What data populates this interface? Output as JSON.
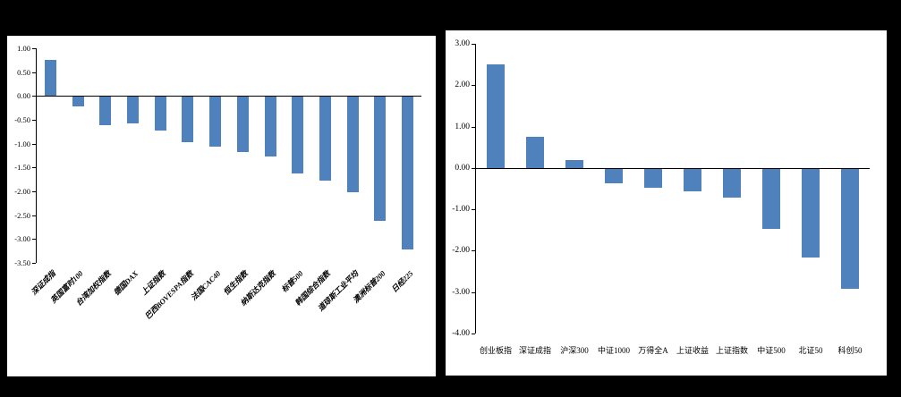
{
  "page": {
    "background_color": "#000000",
    "panel_background_color": "#FFFFFF"
  },
  "chart_data": [
    {
      "type": "bar",
      "title": "",
      "xlabel": "",
      "ylabel": "",
      "grid": false,
      "legend": null,
      "categories": [
        "深证成指",
        "英国富时100",
        "台湾加权指数",
        "德国DAX",
        "上证指数",
        "巴西BOVESPA指数",
        "法国CAC40",
        "恒生指数",
        "纳斯达克指数",
        "标普500",
        "韩国综合指数",
        "道琼斯工业平均",
        "澳洲标普200",
        "日经225"
      ],
      "values": [
        0.75,
        -0.2,
        -0.6,
        -0.55,
        -0.7,
        -0.95,
        -1.05,
        -1.15,
        -1.25,
        -1.6,
        -1.75,
        -2.0,
        -2.6,
        -3.2
      ],
      "ylim": [
        -3.5,
        1.0
      ],
      "yticks": [
        "1.00",
        "0.50",
        "0.00",
        "-0.50",
        "-1.00",
        "-1.50",
        "-2.00",
        "-2.50",
        "-3.00",
        "-3.50"
      ],
      "bar_color": "#4F81BD",
      "axis_color": "#000000"
    },
    {
      "type": "bar",
      "title": "",
      "xlabel": "",
      "ylabel": "",
      "grid": false,
      "legend": null,
      "categories": [
        "创业板指",
        "深证成指",
        "沪深300",
        "中证1000",
        "万得全A",
        "上证收益",
        "上证指数",
        "中证500",
        "北证50",
        "科创50"
      ],
      "values": [
        2.5,
        0.75,
        0.2,
        -0.35,
        -0.45,
        -0.55,
        -0.7,
        -1.45,
        -2.15,
        -2.9
      ],
      "ylim": [
        -4.0,
        3.0
      ],
      "yticks": [
        "3.00",
        "2.00",
        "1.00",
        "0.00",
        "-1.00",
        "-2.00",
        "-3.00",
        "-4.00"
      ],
      "bar_color": "#4F81BD",
      "axis_color": "#000000"
    }
  ]
}
